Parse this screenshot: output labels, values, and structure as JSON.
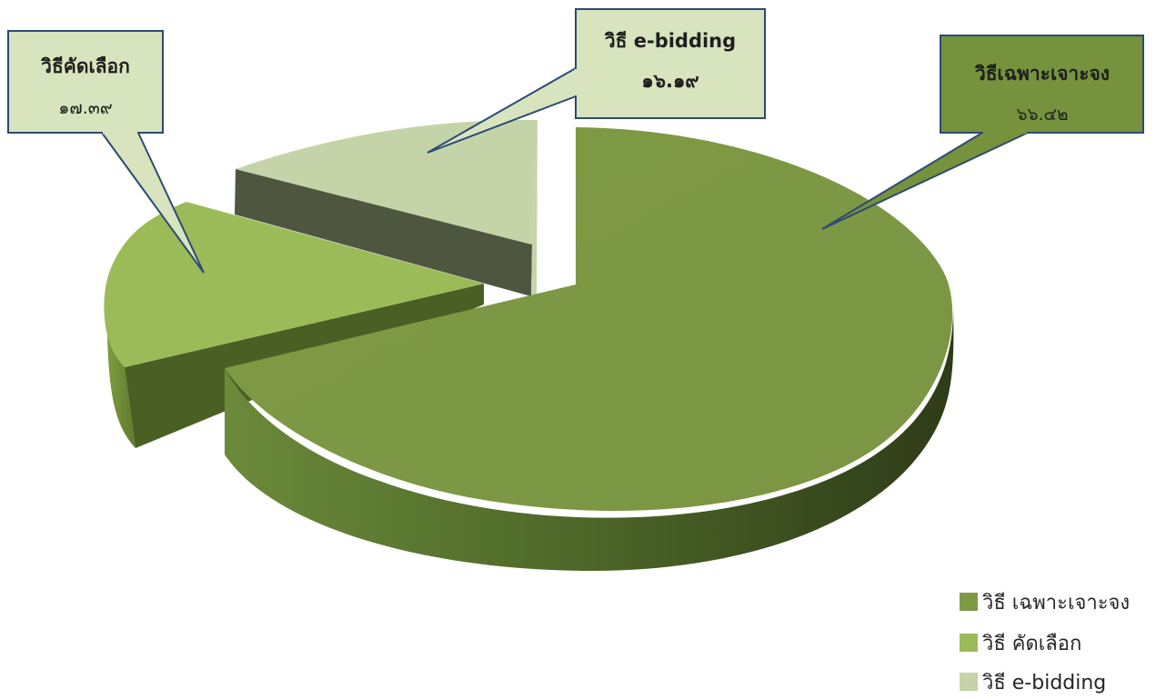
{
  "chart_data": {
    "type": "pie",
    "style": "3d-exploded",
    "slices": [
      {
        "name": "วิธี เฉพาะเจาะจง",
        "callout_title": "วิธีเฉพาะเจาะจง",
        "value": 66.42,
        "value_label": "๖๖.๔๒",
        "color": "#7F9A45"
      },
      {
        "name": "วิธี คัดเลือก",
        "callout_title": "วิธีคัดเลือก",
        "value": 17.39,
        "value_label": "๑๗.๓๙",
        "color": "#9BBB59"
      },
      {
        "name": "วิธี e-bidding",
        "callout_title": "วิธี e-bidding",
        "value": 16.19,
        "value_label": "๑๖.๑๙",
        "color": "#C4D4A8"
      }
    ],
    "legend_position": "bottom-right"
  },
  "colors": {
    "callout_border": "#2E4A73",
    "callout_fill_dark": "#76923C",
    "callout_fill_light": "#D7E4BD",
    "wall_dark": "#4E5640"
  }
}
